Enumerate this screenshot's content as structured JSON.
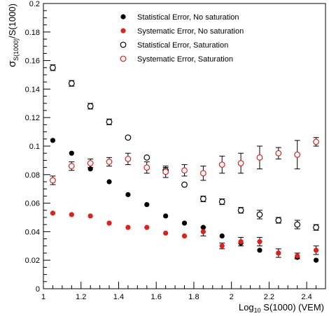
{
  "chart_data": {
    "type": "scatter",
    "xlabel_main": "Log",
    "xlabel_sub": "10",
    "xlabel_rest": " S(1000) (VEM)",
    "ylabel_sigma": "σ",
    "ylabel_sub": "S(1000)",
    "ylabel_rest": "/S(1000)",
    "xlim": [
      1.0,
      2.5
    ],
    "ylim": [
      0.0,
      0.2
    ],
    "xticks": [
      1,
      1.2,
      1.4,
      1.6,
      1.8,
      2,
      2.2,
      2.4
    ],
    "xtick_labels": [
      "1",
      "1.2",
      "1.4",
      "1.6",
      "1.8",
      "2",
      "2.2",
      "2.4"
    ],
    "yticks": [
      0,
      0.02,
      0.04,
      0.06,
      0.08,
      0.1,
      0.12,
      0.14,
      0.16,
      0.18,
      0.2
    ],
    "ytick_labels": [
      "0",
      "0.02",
      "0.04",
      "0.06",
      "0.08",
      "0.1",
      "0.12",
      "0.14",
      "0.16",
      "0.18",
      "0.2"
    ],
    "grid": false,
    "legend_position": "top-center",
    "series": [
      {
        "name": "Statistical Error, No saturation",
        "color": "#000000",
        "marker": "filled-circle",
        "x": [
          1.05,
          1.15,
          1.25,
          1.35,
          1.45,
          1.55,
          1.65,
          1.75,
          1.85,
          1.95,
          2.05,
          2.15,
          2.25,
          2.35,
          2.45
        ],
        "y": [
          0.104,
          0.095,
          0.084,
          0.075,
          0.066,
          0.059,
          0.051,
          0.046,
          0.043,
          0.037,
          0.032,
          0.027,
          0.025,
          0.022,
          0.02
        ],
        "err": [
          0,
          0,
          0,
          0,
          0,
          0,
          0,
          0,
          0,
          0,
          0,
          0,
          0,
          0,
          0
        ]
      },
      {
        "name": "Systematic Error, No saturation",
        "color": "#e0201b",
        "marker": "filled-circle",
        "x": [
          1.05,
          1.15,
          1.25,
          1.35,
          1.45,
          1.55,
          1.65,
          1.75,
          1.85,
          1.95,
          2.05,
          2.15,
          2.25,
          2.35,
          2.45
        ],
        "y": [
          0.053,
          0.052,
          0.051,
          0.046,
          0.043,
          0.043,
          0.039,
          0.037,
          0.04,
          0.03,
          0.033,
          0.033,
          0.025,
          0.023,
          0.027
        ],
        "err": [
          0,
          0,
          0,
          0,
          0,
          0,
          0,
          0,
          0.003,
          0.002,
          0.003,
          0.003,
          0.003,
          0.002,
          0.003
        ]
      },
      {
        "name": "Statistical Error, Saturation",
        "color": "#000000",
        "marker": "open-circle",
        "x": [
          1.05,
          1.15,
          1.25,
          1.35,
          1.45,
          1.55,
          1.65,
          1.75,
          1.85,
          1.95,
          2.05,
          2.15,
          2.25,
          2.35,
          2.45
        ],
        "y": [
          0.155,
          0.144,
          0.128,
          0.117,
          0.106,
          0.092,
          0.083,
          0.073,
          0.063,
          0.061,
          0.055,
          0.052,
          0.048,
          0.045,
          0.043
        ],
        "err": [
          0.002,
          0.002,
          0.002,
          0.002,
          0,
          0,
          0.002,
          0,
          0.002,
          0.002,
          0.002,
          0.003,
          0.002,
          0.003,
          0.002
        ]
      },
      {
        "name": "Systematic Error, Saturation",
        "color": "#e0201b",
        "marker": "open-circle",
        "x": [
          1.05,
          1.15,
          1.25,
          1.35,
          1.45,
          1.55,
          1.65,
          1.75,
          1.85,
          1.95,
          2.05,
          2.15,
          2.25,
          2.35,
          2.45
        ],
        "y": [
          0.076,
          0.086,
          0.088,
          0.089,
          0.091,
          0.085,
          0.082,
          0.083,
          0.081,
          0.087,
          0.088,
          0.092,
          0.095,
          0.094,
          0.103
        ],
        "err": [
          0.003,
          0.003,
          0.003,
          0.003,
          0.004,
          0.004,
          0.004,
          0.004,
          0.005,
          0.006,
          0.007,
          0.008,
          0.004,
          0.01,
          0.003
        ]
      }
    ]
  }
}
